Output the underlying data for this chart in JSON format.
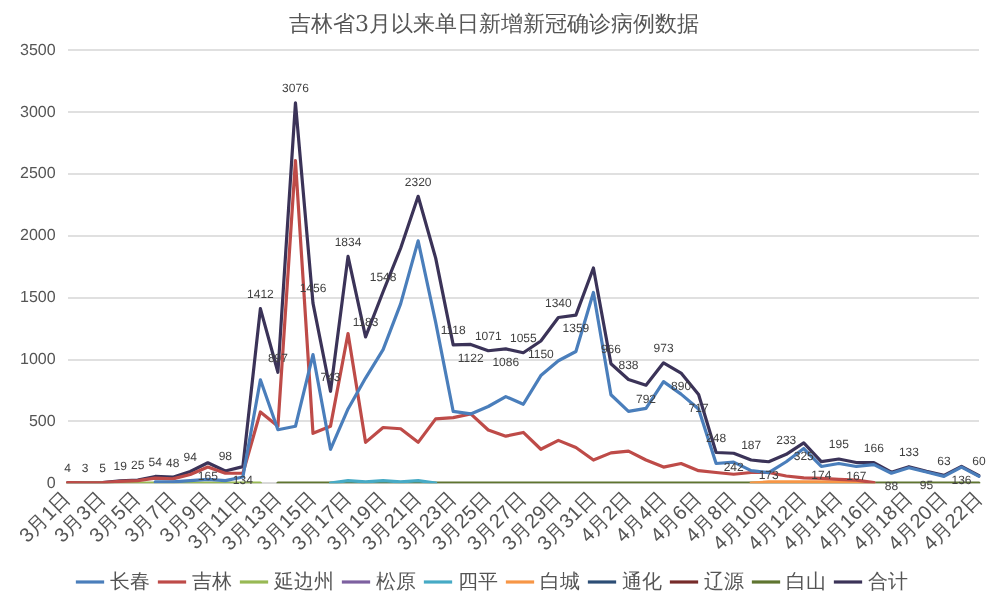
{
  "chart_data": {
    "type": "line",
    "title": "吉林省3月以来单日新增新冠确诊病例数据",
    "categories": [
      "3月1日",
      null,
      "3月3日",
      null,
      "3月5日",
      null,
      "3月7日",
      null,
      "3月9日",
      null,
      "3月11日",
      null,
      "3月13日",
      null,
      "3月15日",
      null,
      "3月17日",
      null,
      "3月19日",
      null,
      "3月21日",
      null,
      "3月23日",
      null,
      "3月25日",
      null,
      "3月27日",
      null,
      "3月29日",
      null,
      "3月31日",
      null,
      "4月2日",
      null,
      "4月4日",
      null,
      "4月6日",
      null,
      "4月8日",
      null,
      "4月10日",
      null,
      "4月12日",
      null,
      "4月14日",
      null,
      "4月16日",
      null,
      "4月18日",
      null,
      "4月20日",
      null,
      "4月22日"
    ],
    "ylim": [
      0,
      3500
    ],
    "yticks": [
      0,
      500,
      1000,
      1500,
      2000,
      2500,
      3000,
      3500
    ],
    "grid": "y",
    "legend": "bottom",
    "marker": "none",
    "line_style": "solid",
    "series": [
      {
        "name": "长春",
        "color": "#4a7ebb",
        "values": [
          null,
          null,
          null,
          null,
          null,
          10,
          10,
          20,
          30,
          20,
          50,
          836,
          432,
          460,
          1040,
          274,
          600,
          850,
          1080,
          1450,
          1960,
          1300,
          580,
          560,
          620,
          700,
          638,
          870,
          990,
          1065,
          1542,
          715,
          580,
          605,
          821,
          720,
          600,
          159,
          170,
          101,
          85,
          173,
          280,
          135,
          159,
          135,
          150,
          80,
          125,
          90,
          55,
          130,
          55
        ]
      },
      {
        "name": "吉林",
        "color": "#be4b48",
        "values": [
          4,
          3,
          5,
          14,
          20,
          40,
          35,
          70,
          130,
          80,
          80,
          576,
          461,
          2608,
          403,
          461,
          1210,
          330,
          450,
          440,
          330,
          520,
          530,
          560,
          430,
          380,
          410,
          274,
          346,
          288,
          187,
          245,
          259,
          187,
          130,
          159,
          101,
          86,
          72,
          86,
          86,
          58,
          43,
          38,
          30,
          25,
          5,
          null,
          null,
          null,
          null,
          null,
          null
        ]
      },
      {
        "name": "延边州",
        "color": "#98b954",
        "values": [
          0,
          0,
          0,
          0,
          0,
          0,
          0,
          0,
          0,
          0,
          0,
          0,
          null,
          null,
          null,
          null,
          null,
          null,
          null,
          null,
          null,
          null,
          null,
          null,
          null,
          null,
          null,
          null,
          null,
          null,
          null,
          null,
          null,
          null,
          null,
          null,
          null,
          null,
          null,
          null,
          null,
          null,
          null,
          null,
          null,
          null,
          null,
          null,
          null,
          null,
          null,
          null,
          null
        ]
      },
      {
        "name": "松原",
        "color": "#7d60a0",
        "values": [
          null,
          null,
          null,
          null,
          null,
          null,
          null,
          null,
          null,
          null,
          null,
          null,
          null,
          null,
          null,
          null,
          null,
          null,
          null,
          null,
          null,
          null,
          null,
          null,
          null,
          null,
          null,
          null,
          null,
          null,
          null,
          null,
          null,
          null,
          null,
          null,
          null,
          null,
          null,
          null,
          null,
          null,
          null,
          null,
          null,
          null,
          null,
          null,
          null,
          null,
          null,
          null,
          null
        ]
      },
      {
        "name": "四平",
        "color": "#46aac5",
        "values": [
          null,
          null,
          null,
          null,
          null,
          null,
          null,
          null,
          null,
          null,
          null,
          null,
          null,
          null,
          null,
          0,
          20,
          10,
          20,
          10,
          20,
          0,
          null,
          null,
          null,
          null,
          null,
          null,
          null,
          null,
          null,
          null,
          null,
          null,
          null,
          null,
          null,
          null,
          null,
          null,
          null,
          null,
          null,
          null,
          null,
          null,
          null,
          null,
          null,
          null,
          null,
          null,
          null
        ]
      },
      {
        "name": "白城",
        "color": "#f79646",
        "values": [
          null,
          null,
          null,
          null,
          null,
          null,
          null,
          null,
          null,
          null,
          null,
          null,
          null,
          null,
          null,
          null,
          null,
          null,
          null,
          null,
          null,
          null,
          null,
          null,
          null,
          null,
          null,
          null,
          null,
          null,
          null,
          null,
          null,
          null,
          null,
          null,
          null,
          null,
          null,
          0,
          10,
          10,
          10,
          10,
          10,
          10,
          0,
          null,
          null,
          null,
          null,
          null,
          null
        ]
      },
      {
        "name": "通化",
        "color": "#2c4d75",
        "values": [
          null,
          null,
          null,
          null,
          null,
          null,
          null,
          null,
          null,
          null,
          null,
          null,
          null,
          null,
          null,
          null,
          null,
          null,
          null,
          null,
          null,
          null,
          null,
          null,
          null,
          null,
          null,
          null,
          null,
          null,
          null,
          null,
          null,
          null,
          null,
          null,
          null,
          null,
          null,
          null,
          null,
          null,
          null,
          null,
          null,
          null,
          null,
          null,
          null,
          null,
          null,
          null,
          null
        ]
      },
      {
        "name": "辽源",
        "color": "#772c2a",
        "values": [
          null,
          null,
          null,
          null,
          null,
          null,
          null,
          null,
          null,
          null,
          null,
          null,
          null,
          null,
          null,
          null,
          null,
          null,
          null,
          null,
          null,
          null,
          null,
          null,
          null,
          null,
          null,
          null,
          null,
          null,
          null,
          null,
          null,
          null,
          null,
          null,
          null,
          null,
          null,
          null,
          null,
          null,
          null,
          null,
          null,
          null,
          null,
          null,
          null,
          null,
          null,
          null,
          null
        ]
      },
      {
        "name": "白山",
        "color": "#5f7530",
        "values": [
          null,
          null,
          null,
          null,
          null,
          null,
          null,
          null,
          null,
          null,
          null,
          null,
          0,
          0,
          0,
          0,
          0,
          0,
          0,
          0,
          0,
          0,
          0,
          0,
          0,
          0,
          0,
          0,
          0,
          0,
          0,
          0,
          0,
          0,
          0,
          0,
          0,
          0,
          0,
          0,
          0,
          0,
          0,
          0,
          0,
          0,
          0,
          0,
          0,
          0,
          0,
          0,
          0
        ]
      },
      {
        "name": "合计",
        "color": "#3b3358",
        "values": [
          4,
          3,
          5,
          19,
          25,
          54,
          48,
          94,
          165,
          98,
          134,
          1412,
          897,
          3076,
          1456,
          743,
          1834,
          1183,
          1548,
          1900,
          2320,
          1820,
          1118,
          1122,
          1071,
          1086,
          1055,
          1150,
          1340,
          1359,
          1740,
          966,
          838,
          792,
          973,
          890,
          717,
          248,
          242,
          187,
          173,
          233,
          325,
          174,
          195,
          167,
          166,
          88,
          133,
          95,
          63,
          136,
          60
        ],
        "value_labels": [
          "4",
          "3",
          "5",
          "19",
          "25",
          "54",
          "48",
          "94",
          "165",
          "98",
          "134",
          "1412",
          "897",
          "3076",
          "1456",
          "743",
          "1834",
          "1183",
          "1548",
          null,
          "2320",
          null,
          "1118",
          "1122",
          "1071",
          "1086",
          "1055",
          "1150",
          "1340",
          "1359",
          null,
          "966",
          "838",
          "792",
          "973",
          "890",
          "717",
          "248",
          "242",
          "187",
          "173",
          "233",
          "325",
          "174",
          "195",
          "167",
          "166",
          "88",
          "133",
          "95",
          "63",
          "136",
          "60"
        ]
      }
    ]
  }
}
